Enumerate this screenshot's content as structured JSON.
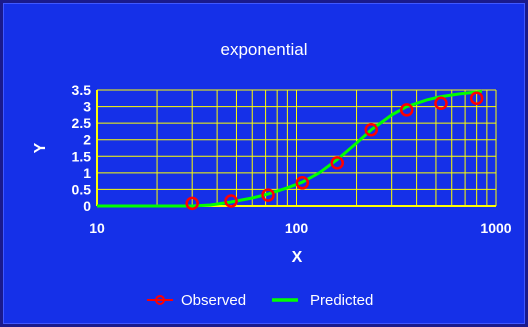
{
  "chart_data": {
    "type": "scatter",
    "title": "exponential",
    "xlabel": "X",
    "ylabel": "Y",
    "x_scale": "log",
    "xlim": [
      10,
      1000
    ],
    "ylim": [
      0,
      3.5
    ],
    "x_tick_labels": [
      "10",
      "100",
      "1000"
    ],
    "y_tick_labels": [
      "0",
      "0.5",
      "1",
      "1.5",
      "2",
      "2.5",
      "3",
      "3.5"
    ],
    "grid": true,
    "legend_position": "bottom",
    "series": [
      {
        "name": "Observed",
        "style": "markers-circle",
        "color": "#ff0000",
        "x": [
          30,
          47,
          72,
          107,
          160,
          237,
          357,
          530,
          800
        ],
        "y": [
          0.08,
          0.15,
          0.33,
          0.7,
          1.3,
          2.3,
          2.9,
          3.1,
          3.25
        ]
      },
      {
        "name": "Predicted",
        "style": "line",
        "color": "#00ff00",
        "x": [
          10,
          30,
          37,
          47,
          60,
          72,
          90,
          107,
          130,
          160,
          200,
          237,
          300,
          357,
          450,
          530,
          650,
          800,
          850
        ],
        "y": [
          0,
          0,
          0.03,
          0.12,
          0.24,
          0.36,
          0.55,
          0.72,
          1.0,
          1.4,
          1.9,
          2.3,
          2.75,
          3.0,
          3.2,
          3.3,
          3.38,
          3.44,
          3.46
        ]
      }
    ]
  },
  "colors": {
    "background": "#1530e8",
    "plot_area": "#1530e8",
    "grid": "#ffff00",
    "text": "#ffffff"
  }
}
